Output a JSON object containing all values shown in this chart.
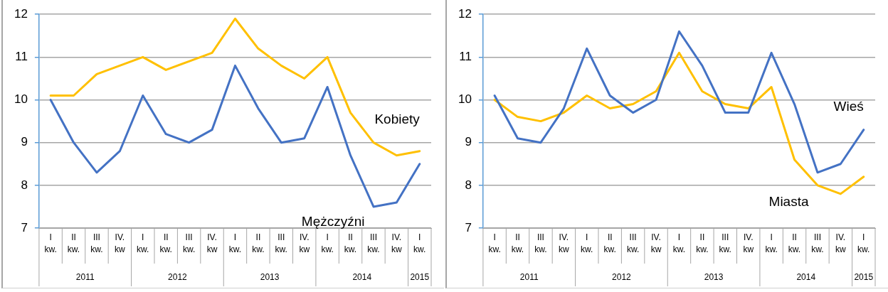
{
  "chart_data": [
    {
      "type": "line",
      "categories": [
        "I kw.",
        "II kw.",
        "III kw.",
        "IV. kw",
        "I kw.",
        "II kw.",
        "III kw.",
        "IV. kw",
        "I kw.",
        "II kw.",
        "III kw.",
        "IV. kw",
        "I kw.",
        "II kw.",
        "III kw.",
        "IV. kw",
        "I kw."
      ],
      "annotations": [
        "2011",
        "2012",
        "2013",
        "2014",
        "2015"
      ],
      "series": [
        {
          "name": "Kobiety",
          "color": "#ffc000",
          "values": [
            10.1,
            10.1,
            10.6,
            10.8,
            11.0,
            10.7,
            10.9,
            11.1,
            11.9,
            11.2,
            10.8,
            10.5,
            11.0,
            9.7,
            9.0,
            8.7,
            8.8
          ]
        },
        {
          "name": "Mężczyźni",
          "color": "#4472c4",
          "values": [
            10.0,
            9.0,
            8.3,
            8.8,
            10.1,
            9.2,
            9.0,
            9.3,
            10.8,
            9.8,
            9.0,
            9.1,
            10.3,
            8.7,
            7.5,
            7.6,
            8.5
          ]
        }
      ],
      "ylim": [
        7,
        12
      ],
      "yticks": [
        7,
        8,
        9,
        10,
        11,
        12
      ],
      "grid": "y",
      "legend": false,
      "marker": "none",
      "line_style": "solid"
    },
    {
      "type": "line",
      "categories": [
        "I kw.",
        "II kw.",
        "III kw.",
        "IV. kw",
        "I kw.",
        "II kw.",
        "III kw.",
        "IV. kw",
        "I kw.",
        "II kw.",
        "III kw.",
        "IV. kw",
        "I kw.",
        "II kw.",
        "III kw.",
        "IV. kw",
        "I kw."
      ],
      "annotations": [
        "2011",
        "2012",
        "2013",
        "2014",
        "2015"
      ],
      "series": [
        {
          "name": "Wieś",
          "color": "#4472c4",
          "values": [
            10.1,
            9.1,
            9.0,
            9.8,
            11.2,
            10.1,
            9.7,
            10.0,
            11.6,
            10.8,
            9.7,
            9.7,
            11.1,
            9.9,
            8.3,
            8.5,
            9.3
          ]
        },
        {
          "name": "Miasta",
          "color": "#ffc000",
          "values": [
            10.0,
            9.6,
            9.5,
            9.7,
            10.1,
            9.8,
            9.9,
            10.2,
            11.1,
            10.2,
            9.9,
            9.8,
            10.3,
            8.6,
            8.0,
            7.8,
            8.2
          ]
        }
      ],
      "ylim": [
        7,
        12
      ],
      "yticks": [
        7,
        8,
        9,
        10,
        11,
        12
      ],
      "grid": "y",
      "legend": false,
      "marker": "none",
      "line_style": "solid"
    }
  ]
}
